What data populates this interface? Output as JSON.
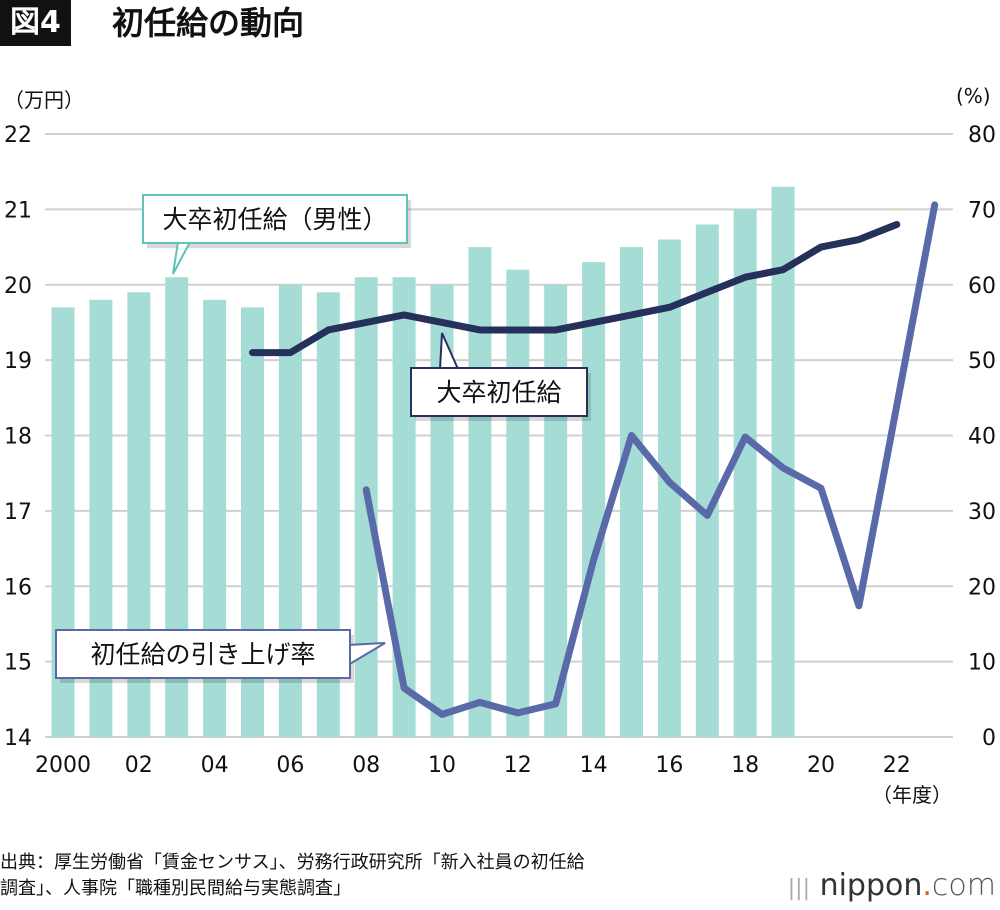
{
  "header": {
    "badge": "図4",
    "title": "初任給の動向"
  },
  "footer": {
    "source_line1": "出典：厚生労働省「賃金センサス」、労務行政研究所「新入社員の初任給",
    "source_line2": "調査」、人事院「職種別民間給与実態調査」",
    "logo": "nippon",
    "logo_dot": ".",
    "logo_com": "com"
  },
  "chart_data": {
    "type": "bar+line",
    "left_unit": "（万円）",
    "right_unit": "(%)",
    "x_unit": "（年度）",
    "ylim_left": [
      14,
      22
    ],
    "ylim_right": [
      0,
      80
    ],
    "left_ticks": [
      "14",
      "15",
      "16",
      "17",
      "18",
      "19",
      "20",
      "21",
      "22"
    ],
    "right_ticks": [
      "0",
      "10",
      "20",
      "30",
      "40",
      "50",
      "60",
      "70",
      "80"
    ],
    "x_ticks": [
      {
        "year": 2000,
        "label": "2000"
      },
      {
        "year": 2002,
        "label": "02"
      },
      {
        "year": 2004,
        "label": "04"
      },
      {
        "year": 2006,
        "label": "06"
      },
      {
        "year": 2008,
        "label": "08"
      },
      {
        "year": 2010,
        "label": "10"
      },
      {
        "year": 2012,
        "label": "12"
      },
      {
        "year": 2014,
        "label": "14"
      },
      {
        "year": 2016,
        "label": "16"
      },
      {
        "year": 2018,
        "label": "18"
      },
      {
        "year": 2020,
        "label": "20"
      },
      {
        "year": 2022,
        "label": "22"
      }
    ],
    "grid": true,
    "series": [
      {
        "name": "大卒初任給（男性）",
        "type": "bar",
        "axis": "left",
        "color": "#a5ddd6",
        "start_year": 2000,
        "values": [
          19.7,
          19.8,
          19.9,
          20.1,
          19.8,
          19.7,
          20.0,
          19.9,
          20.1,
          20.1,
          20.0,
          20.5,
          20.2,
          20.0,
          20.3,
          20.5,
          20.6,
          20.8,
          21.0,
          21.3
        ]
      },
      {
        "name": "大卒初任給",
        "type": "line",
        "axis": "left",
        "color": "#25315a",
        "start_year": 2005,
        "values": [
          19.1,
          19.1,
          19.4,
          19.5,
          19.6,
          19.5,
          19.4,
          19.4,
          19.4,
          19.5,
          19.6,
          19.7,
          19.9,
          20.1,
          20.2,
          20.5,
          20.6,
          20.8
        ]
      },
      {
        "name": "初任給の引き上げ率",
        "type": "line",
        "axis": "right",
        "color": "#5a6aa8",
        "start_year": 2008,
        "values": [
          32.8,
          6.5,
          3.0,
          4.6,
          3.2,
          4.4,
          23.5,
          40.0,
          33.8,
          29.4,
          39.8,
          35.7,
          33.0,
          17.4,
          44.0,
          70.6
        ]
      }
    ]
  }
}
